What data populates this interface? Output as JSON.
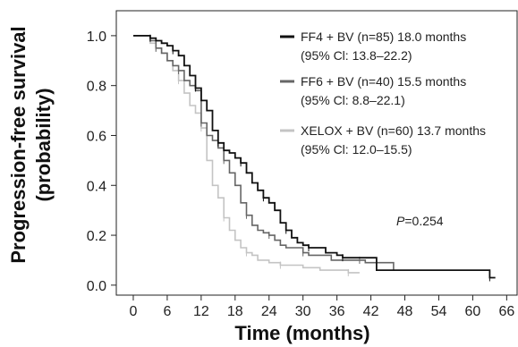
{
  "chart_data": {
    "type": "line",
    "xlabel": "Time (months)",
    "ylabel_line1": "Progression-free survival",
    "ylabel_line2": "(probability)",
    "xlim": [
      -3,
      68
    ],
    "ylim": [
      -0.04,
      1.1
    ],
    "xticks": [
      0,
      6,
      12,
      18,
      24,
      30,
      36,
      42,
      48,
      54,
      60,
      66
    ],
    "yticks": [
      0.0,
      0.2,
      0.4,
      0.6,
      0.8,
      1.0
    ],
    "ytick_labels": [
      "0.0",
      "0.2",
      "0.4",
      "0.6",
      "0.8",
      "1.0"
    ],
    "annotation": {
      "prefix": "P",
      "value": "=0.254",
      "x": 46.5,
      "y": 0.24
    },
    "series": [
      {
        "name": "FF4 + BV (n=85) 18.0 months",
        "ci": "(95% Cl: 13.8–22.2)",
        "color": "#111111",
        "points": [
          [
            0,
            1.0
          ],
          [
            2,
            1.0
          ],
          [
            3,
            0.99
          ],
          [
            4,
            0.98
          ],
          [
            5,
            0.97
          ],
          [
            6,
            0.96
          ],
          [
            7,
            0.94
          ],
          [
            8,
            0.92
          ],
          [
            9,
            0.88
          ],
          [
            10,
            0.84
          ],
          [
            11,
            0.79
          ],
          [
            12,
            0.74
          ],
          [
            13,
            0.7
          ],
          [
            14,
            0.62
          ],
          [
            15,
            0.57
          ],
          [
            16,
            0.54
          ],
          [
            17,
            0.53
          ],
          [
            18,
            0.51
          ],
          [
            19,
            0.49
          ],
          [
            20,
            0.45
          ],
          [
            21,
            0.41
          ],
          [
            22,
            0.38
          ],
          [
            23,
            0.35
          ],
          [
            24,
            0.33
          ],
          [
            25,
            0.3
          ],
          [
            26,
            0.25
          ],
          [
            27,
            0.22
          ],
          [
            28,
            0.19
          ],
          [
            29,
            0.17
          ],
          [
            30,
            0.16
          ],
          [
            31,
            0.15
          ],
          [
            33,
            0.15
          ],
          [
            34,
            0.13
          ],
          [
            36,
            0.12
          ],
          [
            37,
            0.11
          ],
          [
            42,
            0.11
          ],
          [
            43,
            0.06
          ],
          [
            62,
            0.06
          ],
          [
            63,
            0.03
          ],
          [
            64,
            0.03
          ]
        ]
      },
      {
        "name": "FF6 + BV (n=40) 15.5 months",
        "ci": "(95% Cl:  8.8–22.1)",
        "color": "#666666",
        "points": [
          [
            0,
            1.0
          ],
          [
            3,
            0.98
          ],
          [
            4,
            0.95
          ],
          [
            5,
            0.93
          ],
          [
            6,
            0.9
          ],
          [
            7,
            0.88
          ],
          [
            8,
            0.86
          ],
          [
            9,
            0.82
          ],
          [
            10,
            0.8
          ],
          [
            11,
            0.78
          ],
          [
            12,
            0.65
          ],
          [
            13,
            0.6
          ],
          [
            14,
            0.58
          ],
          [
            15,
            0.55
          ],
          [
            16,
            0.5
          ],
          [
            17,
            0.45
          ],
          [
            18,
            0.4
          ],
          [
            19,
            0.33
          ],
          [
            20,
            0.28
          ],
          [
            21,
            0.24
          ],
          [
            22,
            0.22
          ],
          [
            23,
            0.21
          ],
          [
            24,
            0.2
          ],
          [
            25,
            0.18
          ],
          [
            26,
            0.16
          ],
          [
            27,
            0.15
          ],
          [
            30,
            0.13
          ],
          [
            31,
            0.12
          ],
          [
            33,
            0.12
          ],
          [
            35,
            0.1
          ],
          [
            40,
            0.1
          ],
          [
            41,
            0.09
          ],
          [
            45,
            0.09
          ],
          [
            46,
            0.06
          ]
        ]
      },
      {
        "name": "XELOX + BV (n=60) 13.7 months",
        "ci": "(95% Cl: 12.0–15.5)",
        "color": "#c4c4c4",
        "points": [
          [
            0,
            1.0
          ],
          [
            3,
            0.97
          ],
          [
            4,
            0.95
          ],
          [
            5,
            0.93
          ],
          [
            6,
            0.9
          ],
          [
            7,
            0.86
          ],
          [
            8,
            0.82
          ],
          [
            9,
            0.77
          ],
          [
            10,
            0.72
          ],
          [
            11,
            0.69
          ],
          [
            12,
            0.63
          ],
          [
            13,
            0.5
          ],
          [
            14,
            0.4
          ],
          [
            15,
            0.35
          ],
          [
            16,
            0.27
          ],
          [
            17,
            0.22
          ],
          [
            18,
            0.18
          ],
          [
            19,
            0.15
          ],
          [
            20,
            0.13
          ],
          [
            21,
            0.12
          ],
          [
            22,
            0.1
          ],
          [
            24,
            0.09
          ],
          [
            26,
            0.08
          ],
          [
            30,
            0.07
          ],
          [
            33,
            0.06
          ],
          [
            36,
            0.06
          ],
          [
            38,
            0.05
          ],
          [
            40,
            0.05
          ]
        ]
      }
    ]
  }
}
